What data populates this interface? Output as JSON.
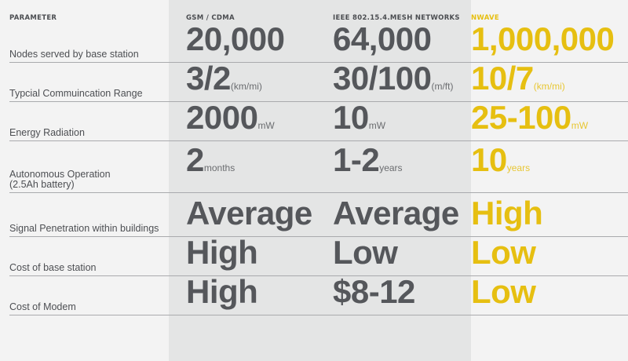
{
  "headers": {
    "parameter": "PARAMETER",
    "gsm": "GSM / CDMA",
    "mesh": "IEEE 802.15.4.MESH NETWORKS",
    "nwave": "NWAVE"
  },
  "rows": [
    {
      "label": "Nodes served by base station",
      "gsm": {
        "value": "20,000",
        "unit": ""
      },
      "mesh": {
        "value": "64,000",
        "unit": ""
      },
      "nwave": {
        "value": "1,000,000",
        "unit": ""
      }
    },
    {
      "label": "Typcial Commuincation Range",
      "gsm": {
        "value": "3/2",
        "unit": "(km/mi)"
      },
      "mesh": {
        "value": "30/100",
        "unit": "(m/ft)"
      },
      "nwave": {
        "value": "10/7",
        "unit": "(km/mi)"
      }
    },
    {
      "label": "Energy Radiation",
      "gsm": {
        "value": "2000",
        "unit": "mW"
      },
      "mesh": {
        "value": "10",
        "unit": "mW"
      },
      "nwave": {
        "value": "25-100",
        "unit": "mW"
      }
    },
    {
      "label": "Autonomous Operation",
      "label_line2": "(2.5Ah battery)",
      "gsm": {
        "value": "2",
        "unit": "months"
      },
      "mesh": {
        "value": "1-2",
        "unit": "years"
      },
      "nwave": {
        "value": "10",
        "unit": "years"
      }
    },
    {
      "label": "Signal Penetration within buildings",
      "gsm": {
        "value": "Average",
        "unit": ""
      },
      "mesh": {
        "value": "Average",
        "unit": ""
      },
      "nwave": {
        "value": "High",
        "unit": ""
      }
    },
    {
      "label": "Cost of base station",
      "gsm": {
        "value": "High",
        "unit": ""
      },
      "mesh": {
        "value": "Low",
        "unit": ""
      },
      "nwave": {
        "value": "Low",
        "unit": ""
      }
    },
    {
      "label": "Cost of Modem",
      "gsm": {
        "value": "High",
        "unit": ""
      },
      "mesh": {
        "value": "$8-12",
        "unit": ""
      },
      "nwave": {
        "value": "Low",
        "unit": ""
      }
    }
  ],
  "colors": {
    "accent": "#e6bf11",
    "text": "#55575b",
    "band": "#e4e5e5",
    "background": "#f3f3f3"
  }
}
